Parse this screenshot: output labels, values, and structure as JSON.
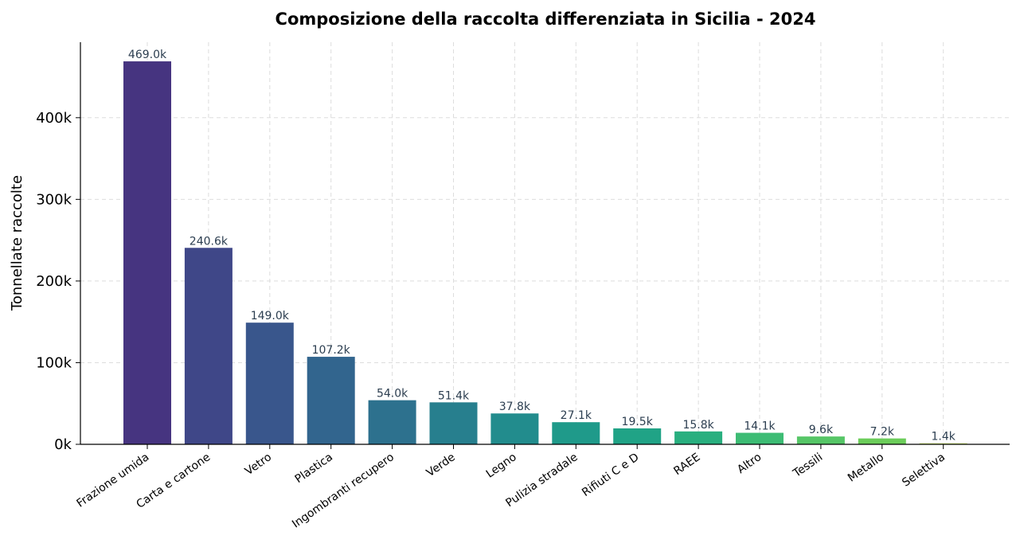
{
  "chart_data": {
    "type": "bar",
    "title": "Composizione della raccolta differenziata in Sicilia - 2024",
    "xlabel": "",
    "ylabel": "Tonnellate raccolte",
    "categories": [
      "Frazione umida",
      "Carta e cartone",
      "Vetro",
      "Plastica",
      "Ingombranti recupero",
      "Verde",
      "Legno",
      "Pulizia stradale",
      "Rifiuti C e D",
      "RAEE",
      "Altro",
      "Tessili",
      "Metallo",
      "Selettiva"
    ],
    "values": [
      469000,
      240600,
      149000,
      107200,
      54000,
      51400,
      37800,
      27100,
      19500,
      15800,
      14100,
      9600,
      7200,
      1400
    ],
    "data_labels": [
      "469.0k",
      "240.6k",
      "149.0k",
      "107.2k",
      "54.0k",
      "51.4k",
      "37.8k",
      "27.1k",
      "19.5k",
      "15.8k",
      "14.1k",
      "9.6k",
      "7.2k",
      "1.4k"
    ],
    "colors": [
      "#463480",
      "#3f4788",
      "#39568c",
      "#32658e",
      "#2d718e",
      "#277f8e",
      "#228c8d",
      "#1f9a8a",
      "#20a386",
      "#29af7f",
      "#3dbc74",
      "#56c667",
      "#6ccd5a",
      "#b5de2b"
    ],
    "yticks": [
      0,
      100000,
      200000,
      300000,
      400000
    ],
    "ytick_labels": [
      "0k",
      "100k",
      "200k",
      "300k",
      "400k"
    ],
    "ylim": [
      0,
      492450
    ],
    "grid": true,
    "legend": "none"
  }
}
